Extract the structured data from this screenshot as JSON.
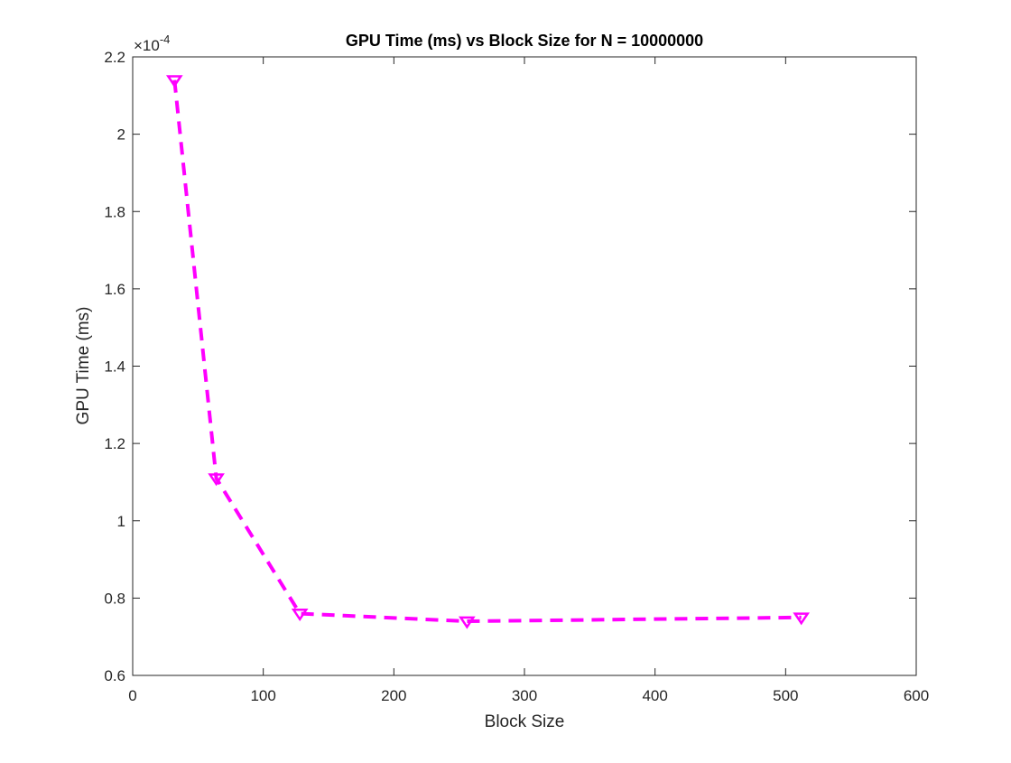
{
  "chart_data": {
    "type": "line",
    "title": "GPU Time (ms) vs Block Size for N = 10000000",
    "xlabel": "Block Size",
    "ylabel": "GPU Time (ms)",
    "xlim": [
      0,
      600
    ],
    "ylim": [
      0.6,
      2.2
    ],
    "xticks": [
      0,
      100,
      200,
      300,
      400,
      500,
      600
    ],
    "xtick_labels": [
      "0",
      "100",
      "200",
      "300",
      "400",
      "500",
      "600"
    ],
    "yticks": [
      0.6,
      0.8,
      1,
      1.2,
      1.4,
      1.6,
      1.8,
      2,
      2.2
    ],
    "ytick_labels": [
      "0.6",
      "0.8",
      "1",
      "1.2",
      "1.4",
      "1.6",
      "1.8",
      "2",
      "2.2"
    ],
    "y_multiplier": {
      "base": "×10",
      "exponent": "-4"
    },
    "grid": false,
    "box": true,
    "series": [
      {
        "x": [
          32,
          64,
          128,
          256,
          512
        ],
        "y": [
          2.14,
          1.11,
          0.76,
          0.74,
          0.75
        ],
        "color": "#ff00ff",
        "line_style": "dashed",
        "marker": "triangle-down"
      }
    ]
  }
}
